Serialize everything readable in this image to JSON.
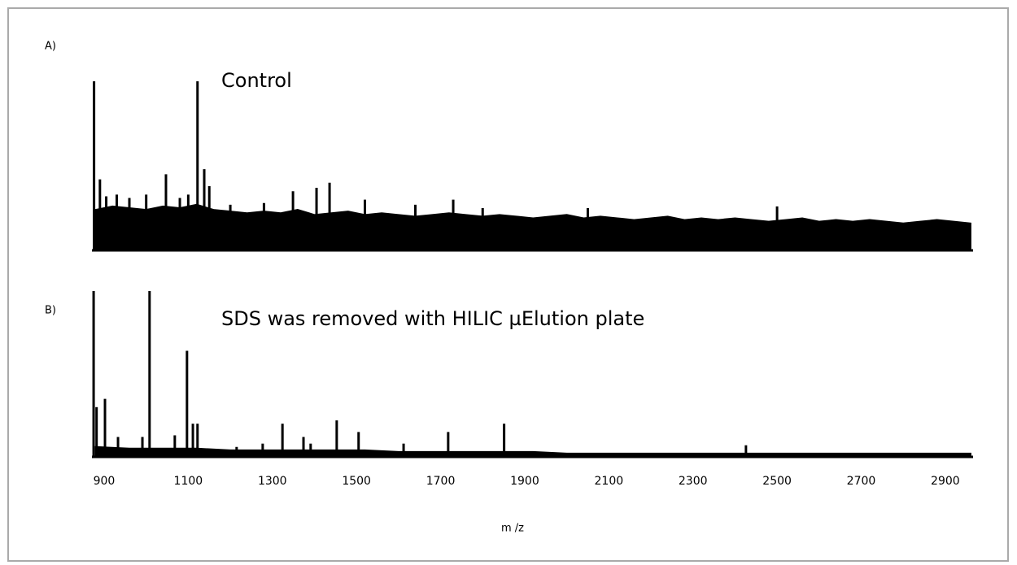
{
  "chart_data": [
    {
      "type": "spectrum",
      "panel_label": "A)",
      "title": "Control",
      "color": "#000000",
      "xlim": [
        871,
        2966
      ],
      "ylim": [
        0,
        100
      ],
      "noise": {
        "x": [
          880,
          920,
          960,
          1000,
          1040,
          1080,
          1120,
          1160,
          1200,
          1240,
          1280,
          1320,
          1360,
          1400,
          1440,
          1480,
          1520,
          1560,
          1600,
          1640,
          1680,
          1720,
          1760,
          1800,
          1840,
          1880,
          1920,
          1960,
          2000,
          2040,
          2080,
          2120,
          2160,
          2200,
          2240,
          2280,
          2320,
          2360,
          2400,
          2440,
          2480,
          2520,
          2560,
          2600,
          2640,
          2680,
          2720,
          2760,
          2800,
          2840,
          2880,
          2920,
          2960
        ],
        "values": [
          24,
          26,
          25,
          24,
          26,
          25,
          27,
          24,
          23,
          22,
          23,
          22,
          24,
          21,
          22,
          23,
          21,
          22,
          21,
          20,
          21,
          22,
          21,
          20,
          21,
          20,
          19,
          20,
          21,
          19,
          20,
          19,
          18,
          19,
          20,
          18,
          19,
          18,
          19,
          18,
          17,
          18,
          19,
          17,
          18,
          17,
          18,
          17,
          16,
          17,
          18,
          17,
          16
        ]
      },
      "peaks": {
        "x": [
          876,
          890,
          905,
          930,
          960,
          1000,
          1047,
          1080,
          1100,
          1122,
          1138,
          1150,
          1200,
          1280,
          1349,
          1405,
          1436,
          1520,
          1640,
          1730,
          1800,
          2050,
          2500
        ],
        "values": [
          100,
          42,
          32,
          33,
          31,
          33,
          45,
          31,
          33,
          100,
          48,
          38,
          27,
          28,
          35,
          37,
          40,
          30,
          27,
          30,
          25,
          25,
          26
        ]
      }
    },
    {
      "type": "spectrum",
      "panel_label": "B)",
      "title": "SDS was removed with HILIC µElution plate",
      "color": "#000000",
      "xlim": [
        871,
        2966
      ],
      "ylim": [
        0,
        100
      ],
      "xticks": [
        900,
        1100,
        1300,
        1500,
        1700,
        1900,
        2100,
        2300,
        2500,
        2700,
        2900
      ],
      "xlabel": "m /z",
      "noise": {
        "x": [
          880,
          960,
          1040,
          1120,
          1200,
          1280,
          1360,
          1440,
          1520,
          1600,
          1680,
          1760,
          1840,
          1920,
          2000,
          2080,
          2160,
          2240,
          2320,
          2400,
          2480,
          2560,
          2640,
          2720,
          2800,
          2880,
          2960
        ],
        "values": [
          6,
          5,
          5,
          5,
          4,
          4,
          4,
          4,
          4,
          3,
          3,
          3,
          3,
          3,
          2,
          2,
          2,
          2,
          2,
          2,
          2,
          2,
          2,
          2,
          2,
          2,
          2
        ]
      },
      "peaks": {
        "x": [
          875,
          882,
          902,
          933,
          991,
          1008,
          1068,
          1097,
          1111,
          1122,
          1215,
          1277,
          1324,
          1374,
          1391,
          1453,
          1505,
          1612,
          1718,
          1851,
          2426
        ],
        "values": [
          100,
          30,
          35,
          12,
          12,
          100,
          13,
          64,
          20,
          20,
          6,
          8,
          20,
          12,
          8,
          22,
          15,
          8,
          15,
          20,
          7
        ]
      }
    }
  ]
}
